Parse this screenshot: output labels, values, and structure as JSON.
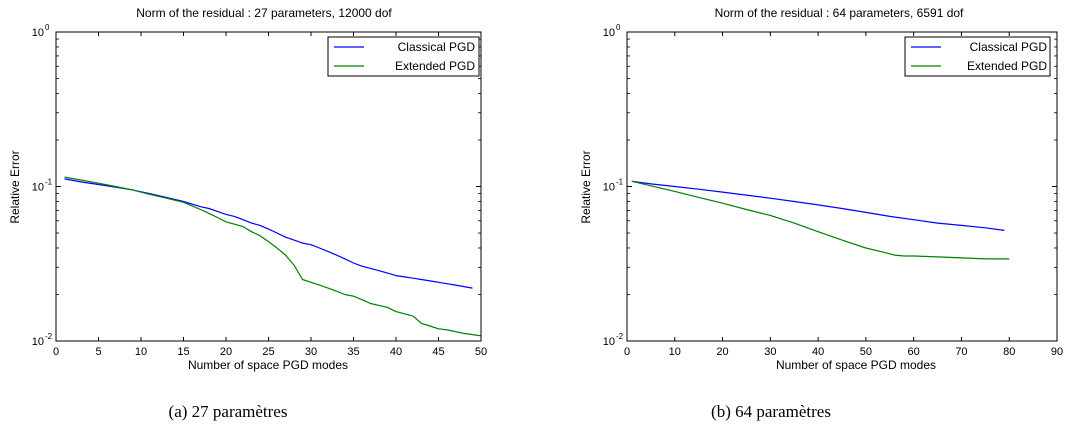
{
  "chart_data": [
    {
      "type": "line",
      "title": "Norm of the residual : 27 parameters, 12000 dof",
      "xlabel": "Number of space PGD modes",
      "ylabel": "Relative Error",
      "xlim": [
        0,
        50
      ],
      "xticks": [
        0,
        5,
        10,
        15,
        20,
        25,
        30,
        35,
        40,
        45,
        50
      ],
      "yscale": "log",
      "ylim": [
        0.01,
        1
      ],
      "yticks": [
        {
          "base": "10",
          "exp": "-2",
          "value": 0.01
        },
        {
          "base": "10",
          "exp": "-1",
          "value": 0.1
        },
        {
          "base": "10",
          "exp": "0",
          "value": 1
        }
      ],
      "legend_position": "top-right",
      "caption": "(a) 27 paramètres",
      "series": [
        {
          "name": "Classical PGD",
          "color": "#0000ff",
          "x": [
            1,
            3,
            5,
            7,
            9,
            11,
            13,
            15,
            17,
            18,
            19,
            20,
            21,
            22,
            23,
            24,
            25,
            26,
            27,
            28,
            29,
            30,
            31,
            32,
            33,
            34,
            35,
            36,
            37,
            38,
            39,
            40,
            41,
            42,
            43,
            44,
            45,
            46,
            47,
            48,
            49
          ],
          "y": [
            0.112,
            0.107,
            0.103,
            0.099,
            0.095,
            0.09,
            0.085,
            0.08,
            0.074,
            0.072,
            0.069,
            0.066,
            0.064,
            0.061,
            0.058,
            0.056,
            0.053,
            0.05,
            0.047,
            0.045,
            0.043,
            0.042,
            0.04,
            0.038,
            0.036,
            0.034,
            0.032,
            0.0305,
            0.0295,
            0.0285,
            0.0275,
            0.0265,
            0.026,
            0.0255,
            0.025,
            0.0245,
            0.024,
            0.0235,
            0.023,
            0.0225,
            0.022
          ]
        },
        {
          "name": "Extended PGD",
          "color": "#008000",
          "x": [
            1,
            3,
            5,
            7,
            9,
            11,
            13,
            15,
            17,
            18,
            19,
            20,
            21,
            22,
            23,
            24,
            25,
            26,
            27,
            28,
            29,
            30,
            31,
            32,
            33,
            34,
            35,
            36,
            37,
            38,
            39,
            40,
            41,
            42,
            43,
            44,
            45,
            46,
            47,
            48,
            49,
            50
          ],
          "y": [
            0.115,
            0.11,
            0.105,
            0.1,
            0.095,
            0.089,
            0.084,
            0.079,
            0.071,
            0.067,
            0.063,
            0.059,
            0.057,
            0.055,
            0.051,
            0.048,
            0.044,
            0.04,
            0.036,
            0.031,
            0.025,
            0.024,
            0.023,
            0.022,
            0.021,
            0.02,
            0.0195,
            0.0185,
            0.0175,
            0.017,
            0.0165,
            0.0155,
            0.015,
            0.0145,
            0.013,
            0.0125,
            0.012,
            0.0118,
            0.0115,
            0.0112,
            0.011,
            0.0108
          ]
        }
      ]
    },
    {
      "type": "line",
      "title": "Norm of the residual : 64 parameters, 6591 dof",
      "xlabel": "Number of space PGD modes",
      "ylabel": "Relative Error",
      "xlim": [
        0,
        90
      ],
      "xticks": [
        0,
        10,
        20,
        30,
        40,
        50,
        60,
        70,
        80,
        90
      ],
      "yscale": "log",
      "ylim": [
        0.01,
        1
      ],
      "yticks": [
        {
          "base": "10",
          "exp": "-2",
          "value": 0.01
        },
        {
          "base": "10",
          "exp": "-1",
          "value": 0.1
        },
        {
          "base": "10",
          "exp": "0",
          "value": 1
        }
      ],
      "legend_position": "top-right",
      "caption": "(b) 64 paramètres",
      "series": [
        {
          "name": "Classical PGD",
          "color": "#0000ff",
          "x": [
            1,
            5,
            10,
            15,
            20,
            25,
            30,
            35,
            40,
            45,
            50,
            55,
            60,
            65,
            70,
            75,
            79
          ],
          "y": [
            0.108,
            0.104,
            0.1,
            0.096,
            0.092,
            0.088,
            0.084,
            0.08,
            0.076,
            0.072,
            0.068,
            0.064,
            0.061,
            0.058,
            0.056,
            0.054,
            0.052
          ]
        },
        {
          "name": "Extended PGD",
          "color": "#008000",
          "x": [
            1,
            5,
            10,
            15,
            20,
            25,
            30,
            35,
            40,
            45,
            50,
            53,
            56,
            58,
            60,
            65,
            70,
            75,
            80
          ],
          "y": [
            0.108,
            0.101,
            0.093,
            0.085,
            0.078,
            0.071,
            0.065,
            0.058,
            0.051,
            0.045,
            0.04,
            0.038,
            0.036,
            0.0355,
            0.0355,
            0.035,
            0.0345,
            0.034,
            0.034
          ]
        }
      ]
    }
  ]
}
